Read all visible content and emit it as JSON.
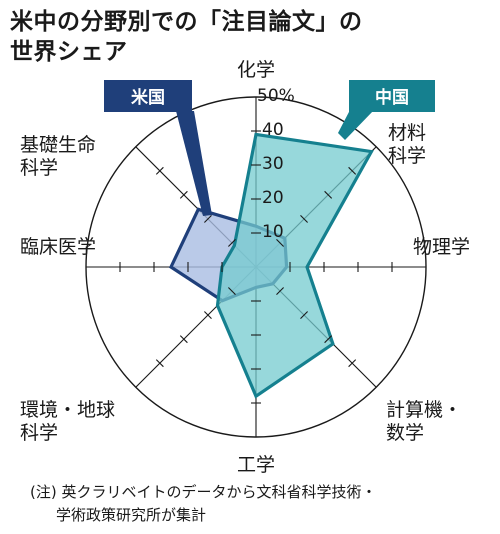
{
  "title_line1": "米中の分野別での「注目論文」の",
  "title_line2": "世界シェア",
  "note_line1": "(注) 英クラリベイトのデータから文科省科学技術・",
  "note_line2": "学術政策研究所が集計",
  "chart_data": {
    "type": "radar",
    "axes": [
      [
        "化学"
      ],
      [
        "材料",
        "科学"
      ],
      [
        "物理学"
      ],
      [
        "計算機・",
        "数学"
      ],
      [
        "工学"
      ],
      [
        "環境・地球",
        "科学"
      ],
      [
        "臨床医学"
      ],
      [
        "基礎生命",
        "科学"
      ]
    ],
    "range": [
      0,
      50
    ],
    "ticks": [
      10,
      20,
      30,
      40
    ],
    "tick_labels": [
      "10",
      "20",
      "30",
      "40",
      "50%"
    ],
    "series": [
      {
        "name": "米国",
        "values": [
          12,
          12,
          9,
          7,
          6,
          14,
          25,
          24
        ],
        "color": "#1f3f7a",
        "fill": "#a9bde2",
        "fill_opacity": 0.8
      },
      {
        "name": "中国",
        "values": [
          39,
          48,
          15,
          32,
          38,
          16,
          10,
          9
        ],
        "color": "#15808f",
        "fill": "#74cbcf",
        "fill_opacity": 0.75
      }
    ],
    "grid": true,
    "legend": "callouts"
  }
}
